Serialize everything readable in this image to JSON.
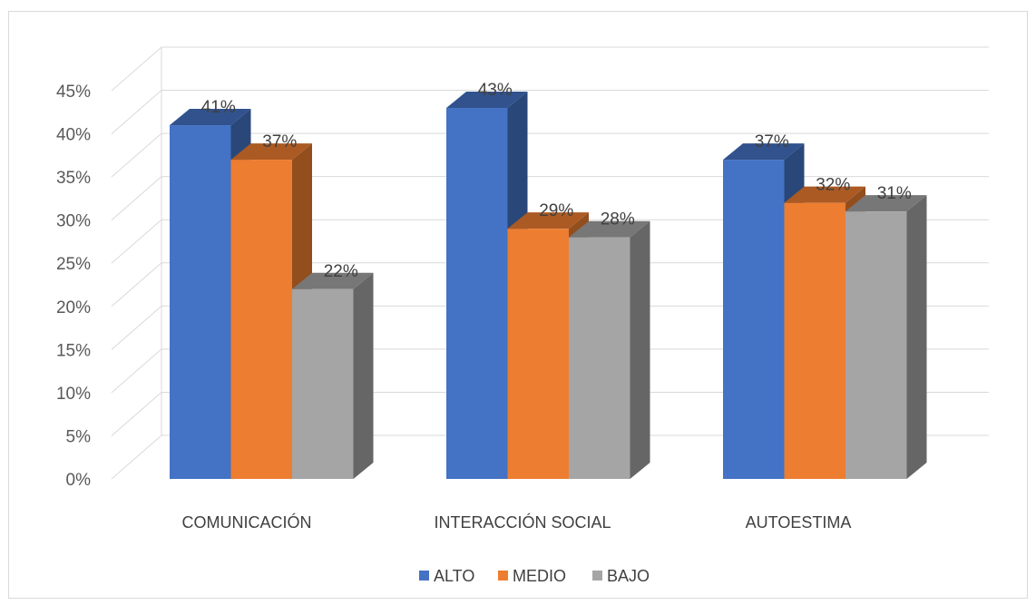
{
  "chart_data": {
    "type": "bar",
    "categories": [
      "COMUNICACIÓN",
      "INTERACCIÓN SOCIAL",
      "AUTOESTIMA"
    ],
    "series": [
      {
        "name": "ALTO",
        "values": [
          41,
          43,
          37
        ],
        "color": "#4472C4",
        "labels": [
          "41%",
          "43%",
          "37%"
        ]
      },
      {
        "name": "MEDIO",
        "values": [
          37,
          29,
          32
        ],
        "color": "#ED7D31",
        "labels": [
          "37%",
          "29%",
          "32%"
        ]
      },
      {
        "name": "BAJO",
        "values": [
          22,
          28,
          31
        ],
        "color": "#A5A5A5",
        "labels": [
          "22%",
          "28%",
          "31%"
        ]
      }
    ],
    "ylim": [
      0,
      45
    ],
    "yticks": [
      "0%",
      "5%",
      "10%",
      "15%",
      "20%",
      "25%",
      "30%",
      "35%",
      "40%",
      "45%"
    ],
    "grid": true,
    "legend": "bottom",
    "style": "3d-clustered-column"
  }
}
